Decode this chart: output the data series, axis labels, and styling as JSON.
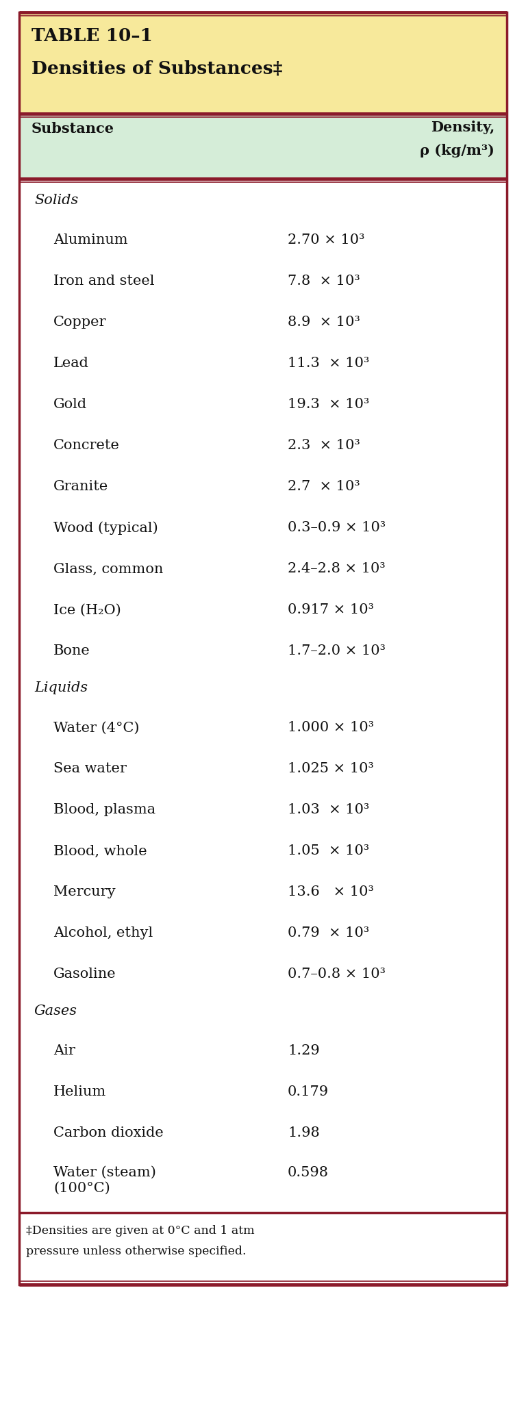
{
  "title_line1": "TABLE 10–1",
  "title_line2": "Densities of Substances‡",
  "col1_header": "Substance",
  "col2_header_line1": "Density,",
  "col2_header_line2": "ρ (kg/m³)",
  "rows": [
    {
      "type": "category",
      "substance": "Solids",
      "density": ""
    },
    {
      "type": "data",
      "substance": "Aluminum",
      "density": "2.70 × 10³"
    },
    {
      "type": "data",
      "substance": "Iron and steel",
      "density": "7.8  × 10³"
    },
    {
      "type": "data",
      "substance": "Copper",
      "density": "8.9  × 10³"
    },
    {
      "type": "data",
      "substance": "Lead",
      "density": "11.3  × 10³"
    },
    {
      "type": "data",
      "substance": "Gold",
      "density": "19.3  × 10³"
    },
    {
      "type": "data",
      "substance": "Concrete",
      "density": "2.3  × 10³"
    },
    {
      "type": "data",
      "substance": "Granite",
      "density": "2.7  × 10³"
    },
    {
      "type": "data",
      "substance": "Wood (typical)",
      "density": "0.3–0.9 × 10³"
    },
    {
      "type": "data",
      "substance": "Glass, common",
      "density": "2.4–2.8 × 10³"
    },
    {
      "type": "data",
      "substance": "Ice (H₂O)",
      "density": "0.917 × 10³"
    },
    {
      "type": "data",
      "substance": "Bone",
      "density": "1.7–2.0 × 10³"
    },
    {
      "type": "category",
      "substance": "Liquids",
      "density": ""
    },
    {
      "type": "data",
      "substance": "Water (4°C)",
      "density": "1.000 × 10³"
    },
    {
      "type": "data",
      "substance": "Sea water",
      "density": "1.025 × 10³"
    },
    {
      "type": "data",
      "substance": "Blood, plasma",
      "density": "1.03  × 10³"
    },
    {
      "type": "data",
      "substance": "Blood, whole",
      "density": "1.05  × 10³"
    },
    {
      "type": "data",
      "substance": "Mercury",
      "density": "13.6   × 10³"
    },
    {
      "type": "data",
      "substance": "Alcohol, ethyl",
      "density": "0.79  × 10³"
    },
    {
      "type": "data",
      "substance": "Gasoline",
      "density": "0.7–0.8 × 10³"
    },
    {
      "type": "category",
      "substance": "Gases",
      "density": ""
    },
    {
      "type": "data",
      "substance": "Air",
      "density": "1.29"
    },
    {
      "type": "data",
      "substance": "Helium",
      "density": "0.179"
    },
    {
      "type": "data",
      "substance": "Carbon dioxide",
      "density": "1.98"
    },
    {
      "type": "data2",
      "substance": "Water (steam)",
      "substance2": "(100°C)",
      "density": "0.598"
    }
  ],
  "footnote1": "‡Densities are given at 0°C and 1 atm",
  "footnote2": "pressure unless otherwise specified.",
  "title_bg": "#F7E99B",
  "header_bg": "#D5EDD8",
  "body_bg": "#FFFFFF",
  "border_color": "#8B1A2A",
  "text_color": "#1a1a1a"
}
